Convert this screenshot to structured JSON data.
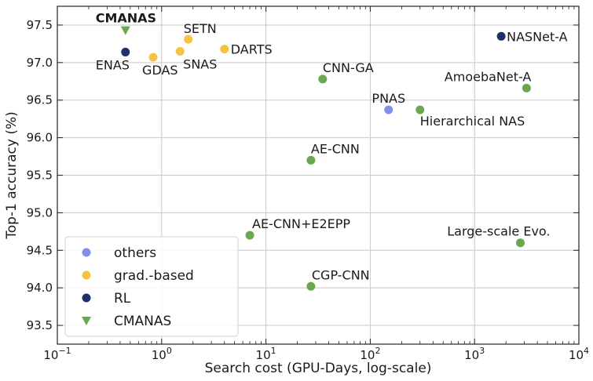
{
  "chart_data": {
    "type": "scatter",
    "title": "",
    "xlabel": "Search cost (GPU-Days, log-scale)",
    "ylabel": "Top-1 accuracy (%)",
    "xscale": "log",
    "xlim": [
      0.1,
      10000
    ],
    "ylim": [
      93.25,
      97.75
    ],
    "grid": true,
    "legend_position": "bottom-left",
    "x_ticks": [
      0.1,
      1,
      10,
      100,
      1000,
      10000
    ],
    "x_tick_labels": [
      {
        "base": "10",
        "exp": "−1"
      },
      {
        "base": "10",
        "exp": "0"
      },
      {
        "base": "10",
        "exp": "1"
      },
      {
        "base": "10",
        "exp": "2"
      },
      {
        "base": "10",
        "exp": "3"
      },
      {
        "base": "10",
        "exp": "4"
      }
    ],
    "y_ticks": [
      93.5,
      94.0,
      94.5,
      95.0,
      95.5,
      96.0,
      96.5,
      97.0,
      97.5
    ],
    "y_tick_labels": [
      "93.5",
      "94.0",
      "94.5",
      "95.0",
      "95.5",
      "96.0",
      "96.5",
      "97.0",
      "97.5"
    ],
    "categories": [
      {
        "key": "others",
        "name": "others",
        "color": "#7f8ff0",
        "marker": "circle"
      },
      {
        "key": "grad",
        "name": "grad.-based",
        "color": "#f5c242",
        "marker": "circle"
      },
      {
        "key": "rl",
        "name": "RL",
        "color": "#1f2f6b",
        "marker": "circle"
      },
      {
        "key": "cmanas",
        "name": "CMANAS",
        "color": "#6aa84f",
        "marker": "triangle-down"
      }
    ],
    "points": [
      {
        "label": "CMANAS",
        "x": 0.45,
        "y": 97.43,
        "category": "cmanas",
        "bold": true
      },
      {
        "label": "ENAS",
        "x": 0.45,
        "y": 97.14,
        "category": "rl"
      },
      {
        "label": "GDAS",
        "x": 0.83,
        "y": 97.07,
        "category": "grad"
      },
      {
        "label": "SETN",
        "x": 1.8,
        "y": 97.31,
        "category": "grad"
      },
      {
        "label": "SNAS",
        "x": 1.5,
        "y": 97.15,
        "category": "grad"
      },
      {
        "label": "DARTS",
        "x": 4.0,
        "y": 97.18,
        "category": "grad"
      },
      {
        "label": "NASNet-A",
        "x": 1800,
        "y": 97.35,
        "category": "rl"
      },
      {
        "label": "CNN-GA",
        "x": 35,
        "y": 96.78,
        "category": "green"
      },
      {
        "label": "AmoebaNet-A",
        "x": 3150,
        "y": 96.66,
        "category": "green"
      },
      {
        "label": "PNAS",
        "x": 150,
        "y": 96.37,
        "category": "others"
      },
      {
        "label": "Hierarchical NAS",
        "x": 300,
        "y": 96.37,
        "category": "green"
      },
      {
        "label": "AE-CNN",
        "x": 27,
        "y": 95.7,
        "category": "green"
      },
      {
        "label": "AE-CNN+E2EPP",
        "x": 7,
        "y": 94.7,
        "category": "green"
      },
      {
        "label": "Large-scale Evo.",
        "x": 2750,
        "y": 94.6,
        "category": "green"
      },
      {
        "label": "CGP-CNN",
        "x": 27,
        "y": 94.02,
        "category": "green"
      }
    ],
    "extra_colors": {
      "green": "#6aa84f"
    }
  }
}
